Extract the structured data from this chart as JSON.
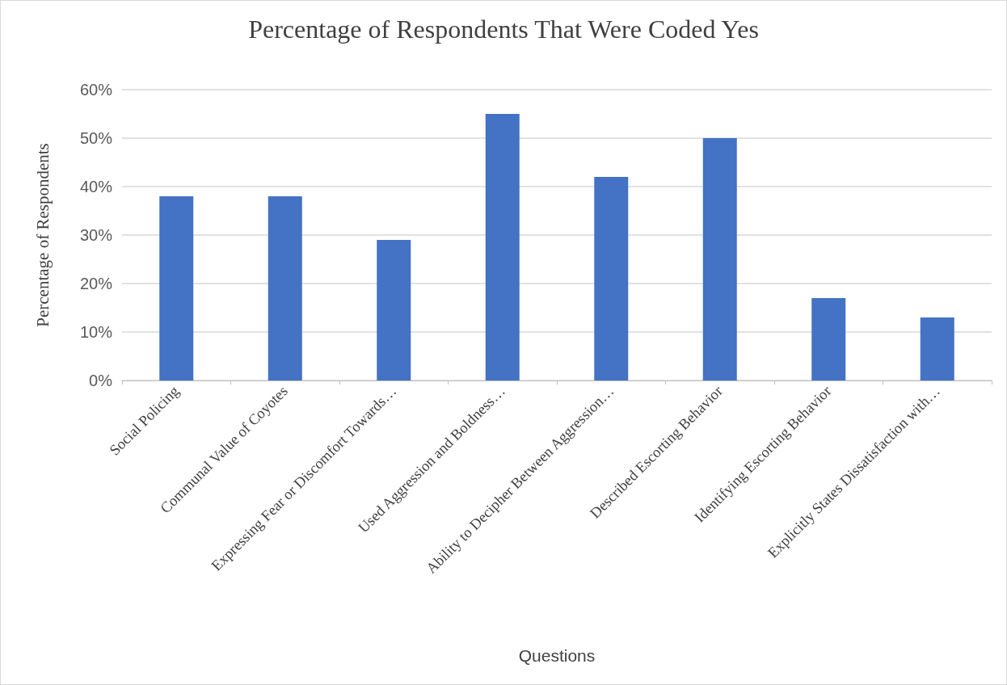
{
  "chart_data": {
    "type": "bar",
    "title": "Percentage of Respondents That Were Coded Yes",
    "xlabel": "Questions",
    "ylabel": "Percentage of Respondents",
    "categories": [
      "Social Policing",
      "Communal Value of Coyotes",
      "Expressing Fear or Discomfort Towards…",
      "Used Aggression and Boldness…",
      "Ability to Decipher Between Aggression…",
      "Described Escorting Behavior",
      "Identifying Escorting Behavior",
      "Explicitly States Dissatisfaction with…"
    ],
    "values": [
      38,
      38,
      29,
      55,
      42,
      50,
      17,
      13
    ],
    "color": "#4472c4",
    "ylim": [
      0,
      60
    ],
    "yticks": [
      {
        "value": 0,
        "label": "0%"
      },
      {
        "value": 10,
        "label": "10%"
      },
      {
        "value": 20,
        "label": "20%"
      },
      {
        "value": 30,
        "label": "30%"
      },
      {
        "value": 40,
        "label": "40%"
      },
      {
        "value": 50,
        "label": "50%"
      },
      {
        "value": 60,
        "label": "60%"
      }
    ],
    "grid": "y"
  }
}
